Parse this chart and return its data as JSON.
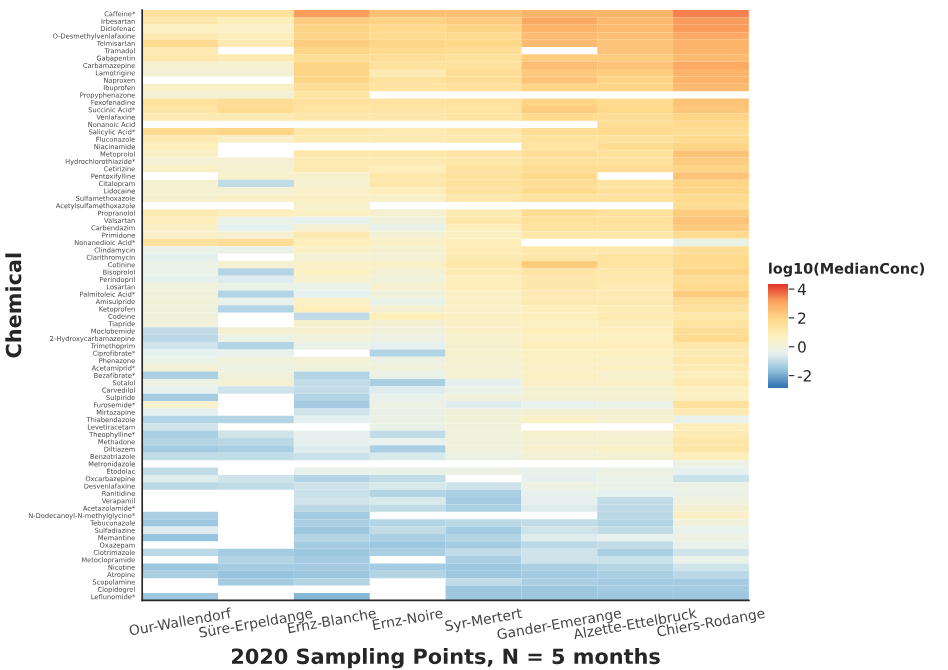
{
  "chart_data": {
    "type": "heatmap",
    "xlabel": "2020 Sampling Points, N = 5 months",
    "ylabel": "Chemical",
    "clabel": "log10(MedianConc)",
    "categories": [
      "Our-Wallendorf",
      "Süre-Erpeldange",
      "Ernz-Blanche",
      "Ernz-Noire",
      "Syr-Mertert",
      "Gander-Emerange",
      "Alzette-Ettelbruck",
      "Chiers-Rodange"
    ],
    "y_categories": [
      "Caffeine*",
      "Irbesartan",
      "Diclofenac",
      "O-Desmethylvenlafaxine",
      "Telmisartan",
      "Tramadol",
      "Gabapentin",
      "Carbamazepine",
      "Lamotrigine",
      "Naproxen",
      "Ibuprofen",
      "Propyphenazone",
      "Fexofenadine",
      "Succinic Acid*",
      "Venlafaxine",
      "Nonanoic Acid",
      "Salicylic Acid*",
      "Fluconazole",
      "Niacinamide",
      "Metoprolol",
      "Hydrochlorothiazide*",
      "Cetirizine",
      "Pentoxifylline",
      "Citalopram",
      "Lidocaine",
      "Sulfamethoxazole",
      "Acetylsulfamethoxazole",
      "Propranolol",
      "Valsartan",
      "Carbendazim",
      "Primidone",
      "Nonanedioic Acid*",
      "Clindamycin",
      "Clarithromycin",
      "Cotinine",
      "Bisoprolol",
      "Perindopril",
      "Losartan",
      "Palmitoleic Acid*",
      "Amisulpride",
      "Ketoprofen",
      "Codeine",
      "Tiapride",
      "Moclobemide",
      "2-Hydroxycarbamazepine",
      "Trimethoprim",
      "Ciprofibrate*",
      "Phenazone",
      "Acetamiprid*",
      "Bezafibrate*",
      "Sotalol",
      "Carvedilol",
      "Sulpiride",
      "Furosemide*",
      "Mirtazapine",
      "Thiabendazole",
      "Levetiracetam",
      "Theophylline*",
      "Methadone",
      "Diltiazem",
      "Benzotriazole",
      "Metronidazole",
      "Etodolac",
      "Oxcarbazepine",
      "Desvenlafaxine",
      "Ranitidine",
      "Verapamil",
      "Acetazolamide*",
      "N-Dodecanoyl-N-methylglycine*",
      "Tebuconazole",
      "Sulfadiazine",
      "Memantine",
      "Oxazepam",
      "Clotrimazole",
      "Metoclopramide",
      "Nicotine",
      "Atropine",
      "Scopolamine",
      "Clopidogrel",
      "Leflunomide*"
    ],
    "cells": [
      [
        1.5,
        1.5,
        3.2,
        2.5,
        2.5,
        2.8,
        2.8,
        3.5
      ],
      [
        1.2,
        0.8,
        2.2,
        2.0,
        2.2,
        3.0,
        2.6,
        3.2
      ],
      [
        0.6,
        0.5,
        2.0,
        1.8,
        2.0,
        2.8,
        2.6,
        3.2
      ],
      [
        1.0,
        0.8,
        2.0,
        1.8,
        1.8,
        2.6,
        2.5,
        3.0
      ],
      [
        1.8,
        1.0,
        2.2,
        2.0,
        1.9,
        2.6,
        2.4,
        2.8
      ],
      [
        1.0,
        null,
        2.0,
        1.8,
        1.6,
        null,
        2.4,
        2.8
      ],
      [
        1.2,
        1.0,
        1.6,
        1.6,
        1.5,
        2.2,
        2.2,
        2.6
      ],
      [
        0.3,
        0.3,
        2.0,
        1.5,
        1.5,
        2.5,
        2.4,
        3.0
      ],
      [
        0.2,
        0.2,
        2.0,
        1.0,
        1.6,
        2.3,
        2.2,
        2.8
      ],
      [
        null,
        null,
        2.0,
        1.5,
        1.7,
        2.4,
        2.0,
        2.8
      ],
      [
        0.5,
        0.5,
        1.6,
        1.4,
        1.5,
        2.0,
        2.0,
        2.6
      ],
      [
        0.2,
        0.2,
        1.4,
        null,
        null,
        null,
        null,
        null
      ],
      [
        1.5,
        1.6,
        1.5,
        1.4,
        1.5,
        2.0,
        1.8,
        2.4
      ],
      [
        1.3,
        1.8,
        1.4,
        1.3,
        1.4,
        2.2,
        1.9,
        2.3
      ],
      [
        1.0,
        1.0,
        1.2,
        1.2,
        1.3,
        1.8,
        1.6,
        2.0
      ],
      [
        null,
        null,
        null,
        null,
        null,
        null,
        1.6,
        1.8
      ],
      [
        1.8,
        2.0,
        1.2,
        1.0,
        1.2,
        1.6,
        1.8,
        1.6
      ],
      [
        1.0,
        0.5,
        1.0,
        1.0,
        1.1,
        1.5,
        1.5,
        1.8
      ],
      [
        0.8,
        null,
        null,
        null,
        null,
        1.4,
        1.7,
        2.0
      ],
      [
        0.5,
        null,
        1.2,
        1.2,
        1.3,
        1.6,
        1.5,
        2.4
      ],
      [
        0.2,
        0.2,
        1.0,
        1.0,
        1.2,
        1.5,
        1.5,
        2.2
      ],
      [
        0.5,
        0.3,
        1.0,
        0.8,
        1.4,
        1.6,
        1.6,
        2.0
      ],
      [
        null,
        0.4,
        0.4,
        1.2,
        1.5,
        1.8,
        null,
        2.4
      ],
      [
        0.3,
        -1.0,
        0.3,
        1.2,
        1.5,
        1.6,
        1.4,
        2.0
      ],
      [
        0.3,
        0.2,
        0.5,
        0.8,
        1.4,
        1.8,
        1.5,
        2.0
      ],
      [
        0.3,
        0.5,
        0.5,
        0.5,
        1.2,
        1.4,
        1.4,
        1.8
      ],
      [
        null,
        null,
        0.4,
        null,
        null,
        null,
        null,
        1.6
      ],
      [
        1.0,
        0.8,
        0.6,
        0.3,
        1.0,
        1.6,
        1.5,
        2.2
      ],
      [
        0.8,
        -0.3,
        -0.5,
        0.0,
        1.2,
        1.5,
        1.5,
        2.4
      ],
      [
        0.5,
        -0.5,
        0.2,
        -0.3,
        0.8,
        1.4,
        1.4,
        2.2
      ],
      [
        0.5,
        0.3,
        1.0,
        0.2,
        0.6,
        1.2,
        1.2,
        1.8
      ],
      [
        1.5,
        1.6,
        0.8,
        0.5,
        0.8,
        null,
        null,
        -0.3
      ],
      [
        -0.3,
        -0.3,
        0.5,
        0.3,
        0.9,
        1.2,
        1.2,
        1.6
      ],
      [
        -0.5,
        null,
        0.2,
        0.2,
        1.0,
        1.2,
        1.4,
        1.8
      ],
      [
        -0.3,
        0.3,
        0.5,
        0.5,
        1.2,
        2.2,
        1.4,
        1.8
      ],
      [
        -0.3,
        -1.2,
        0.6,
        0.2,
        1.0,
        1.3,
        1.2,
        2.0
      ],
      [
        -0.5,
        -0.6,
        0.3,
        0.0,
        0.8,
        1.2,
        1.1,
        1.6
      ],
      [
        0.0,
        -0.3,
        -0.3,
        0.3,
        0.8,
        1.2,
        1.0,
        1.8
      ],
      [
        0.0,
        -1.2,
        -0.5,
        0.0,
        0.6,
        1.0,
        1.0,
        2.2
      ],
      [
        0.1,
        -0.4,
        0.6,
        -0.3,
        0.6,
        1.0,
        1.0,
        1.6
      ],
      [
        0.0,
        -1.2,
        0.8,
        0.2,
        0.5,
        0.8,
        0.9,
        1.5
      ],
      [
        0.0,
        null,
        -1.0,
        0.8,
        0.6,
        0.8,
        1.0,
        1.2
      ],
      [
        0.0,
        null,
        0.4,
        0.2,
        0.5,
        0.6,
        0.8,
        1.4
      ],
      [
        -1.0,
        0.2,
        0.3,
        0.0,
        0.5,
        0.8,
        0.8,
        1.6
      ],
      [
        -1.1,
        -0.3,
        0.0,
        -0.2,
        0.4,
        0.6,
        0.7,
        1.8
      ],
      [
        -0.8,
        -1.2,
        -0.3,
        -0.5,
        0.4,
        0.8,
        0.8,
        1.2
      ],
      [
        -0.5,
        -0.4,
        null,
        -1.2,
        0.4,
        0.6,
        0.7,
        1.0
      ],
      [
        -0.3,
        0.0,
        0.2,
        -0.2,
        0.3,
        0.6,
        0.5,
        1.2
      ],
      [
        0.2,
        -0.2,
        0.0,
        0.0,
        0.2,
        0.5,
        0.6,
        1.0
      ],
      [
        -1.3,
        0.0,
        -1.2,
        -0.3,
        0.2,
        0.6,
        0.4,
        0.8
      ],
      [
        -0.2,
        0.2,
        -1.0,
        -1.3,
        -0.5,
        0.5,
        0.5,
        1.0
      ],
      [
        -0.5,
        -0.8,
        -1.0,
        -0.6,
        -0.3,
        0.2,
        0.3,
        0.7
      ],
      [
        -1.4,
        null,
        -1.2,
        -0.4,
        0.0,
        0.2,
        0.2,
        0.6
      ],
      [
        0.4,
        null,
        -1.4,
        -0.2,
        -0.6,
        -0.4,
        -0.3,
        1.5
      ],
      [
        -0.5,
        null,
        -0.8,
        -0.3,
        0.0,
        0.2,
        0.2,
        1.0
      ],
      [
        -1.2,
        -1.2,
        -0.5,
        -0.2,
        0.1,
        0.5,
        0.3,
        -0.4
      ],
      [
        -0.8,
        null,
        null,
        -0.3,
        0.0,
        null,
        null,
        0.8
      ],
      [
        -1.3,
        -0.8,
        -0.5,
        -1.0,
        0.0,
        0.3,
        0.2,
        1.0
      ],
      [
        -1.2,
        -1.1,
        -0.5,
        -0.4,
        0.0,
        0.2,
        0.3,
        1.2
      ],
      [
        -1.4,
        -1.3,
        -0.6,
        -1.3,
        0.0,
        0.4,
        0.5,
        1.3
      ],
      [
        -1.0,
        -1.0,
        -0.9,
        -0.7,
        -0.2,
        0.1,
        0.2,
        0.8
      ],
      [
        null,
        null,
        null,
        null,
        null,
        null,
        null,
        -0.2
      ],
      [
        -1.0,
        null,
        -0.4,
        -0.3,
        -0.2,
        -0.4,
        -0.2,
        -0.5
      ],
      [
        -0.6,
        -0.8,
        -1.2,
        -1.0,
        null,
        -0.5,
        -0.3,
        -0.9
      ],
      [
        -1.1,
        -1.0,
        -0.8,
        -0.7,
        -0.8,
        -0.2,
        -0.3,
        -0.2
      ],
      [
        null,
        null,
        -0.9,
        -1.2,
        -1.3,
        -0.4,
        -0.5,
        -0.3
      ],
      [
        null,
        null,
        -0.8,
        -0.7,
        -1.4,
        -0.5,
        -1.0,
        -0.1
      ],
      [
        null,
        null,
        -1.1,
        -1.0,
        -1.3,
        -0.6,
        -1.1,
        0.2
      ],
      [
        -1.3,
        null,
        -1.4,
        null,
        null,
        null,
        -1.1,
        0.5
      ],
      [
        -1.5,
        null,
        -1.3,
        -1.2,
        -1.1,
        -1.0,
        -1.2,
        0.0
      ],
      [
        -0.6,
        null,
        -1.5,
        -1.0,
        -1.4,
        -0.8,
        -1.0,
        -0.4
      ],
      [
        -1.6,
        null,
        -1.2,
        -1.3,
        -1.2,
        -0.6,
        -0.4,
        -0.2
      ],
      [
        null,
        null,
        -1.4,
        -1.5,
        -1.4,
        -1.1,
        -1.0,
        -0.4
      ],
      [
        -1.1,
        -1.4,
        -1.5,
        -1.3,
        -1.0,
        -0.8,
        -1.3,
        -0.8
      ],
      [
        null,
        -1.2,
        -1.4,
        null,
        -1.3,
        -0.8,
        -0.9,
        -0.3
      ],
      [
        -1.5,
        -1.4,
        -1.4,
        -1.4,
        -1.5,
        -1.3,
        -1.2,
        -0.8
      ],
      [
        -1.3,
        -1.6,
        -1.5,
        -1.2,
        -1.5,
        -1.4,
        -1.3,
        -1.1
      ],
      [
        null,
        -1.4,
        -1.2,
        null,
        -1.0,
        -1.3,
        -1.4,
        -1.4
      ],
      [
        null,
        null,
        null,
        null,
        -1.5,
        -1.5,
        -1.4,
        -1.4
      ],
      [
        -1.5,
        null,
        -1.8,
        null,
        -1.5,
        -1.5,
        -1.5,
        -1.5
      ]
    ],
    "clim": [
      -2.9,
      4.3
    ],
    "cticks": [
      -2,
      0,
      2,
      4
    ]
  }
}
